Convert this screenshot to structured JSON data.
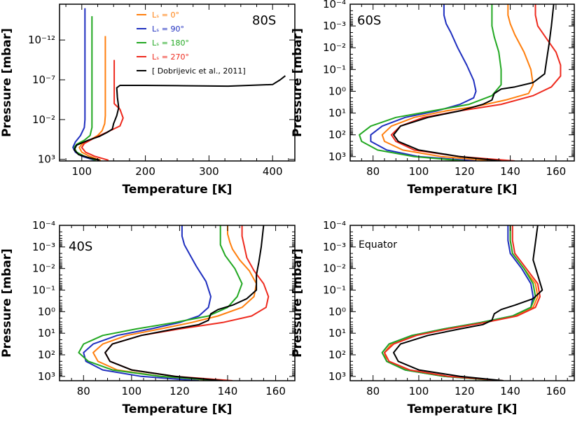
{
  "colors": {
    "ls0": "#ff7f0e",
    "ls90": "#1f2fbf",
    "ls180": "#22a822",
    "ls270": "#ee2a1e",
    "dobrijevic": "#000000"
  },
  "legend": {
    "items": [
      {
        "key": "ls0",
        "label": "Lₛ =    0°"
      },
      {
        "key": "ls90",
        "label": "Lₛ =   90°"
      },
      {
        "key": "ls180",
        "label": "Lₛ = 180°"
      },
      {
        "key": "ls270",
        "label": "Lₛ = 270°"
      },
      {
        "key": "dobrijevic",
        "label": "[ Dobrijevic et al., 2011]"
      }
    ]
  },
  "chart_data": [
    {
      "type": "line",
      "title": "80S",
      "xlabel": "Temperature [K]",
      "ylabel": "Pressure [mbar]",
      "xlim": [
        65,
        435
      ],
      "ylim_log10": [
        3.2,
        -16.5
      ],
      "x_ticks": [
        100,
        200,
        300,
        400
      ],
      "y_ticks": [
        {
          "v": 3,
          "label": "10³"
        },
        {
          "v": -2,
          "label": "10⁻²"
        },
        {
          "v": -7,
          "label": "10⁻⁷"
        },
        {
          "v": -12,
          "label": "10⁻¹²"
        }
      ],
      "series": [
        {
          "name": "Ls=0",
          "color_key": "ls0",
          "T": [
            130,
            112,
            100,
            96,
            100,
            112,
            125,
            132,
            136,
            137,
            137,
            137,
            137,
            137
          ],
          "logP": [
            3.1,
            2.6,
            2.1,
            1.5,
            1.1,
            0.6,
            0,
            -0.6,
            -1.5,
            -2.5,
            -4,
            -7,
            -10,
            -12.5
          ]
        },
        {
          "name": "Ls=90",
          "color_key": "ls90",
          "T": [
            120,
            100,
            90,
            86,
            90,
            98,
            104,
            105,
            105,
            105,
            105,
            105,
            105,
            105
          ],
          "logP": [
            3.1,
            2.6,
            2.1,
            1.5,
            0.8,
            0,
            -1,
            -2,
            -4,
            -6,
            -8,
            -10,
            -13,
            -16
          ]
        },
        {
          "name": "Ls=180",
          "color_key": "ls180",
          "T": [
            122,
            104,
            92,
            88,
            92,
            104,
            113,
            116,
            116,
            116,
            116,
            116,
            116,
            116
          ],
          "logP": [
            3.1,
            2.6,
            2.1,
            1.5,
            1.1,
            0.6,
            0,
            -1,
            -3,
            -5,
            -8,
            -11,
            -13,
            -15
          ]
        },
        {
          "name": "Ls=270",
          "color_key": "ls270",
          "T": [
            142,
            120,
            106,
            100,
            104,
            120,
            142,
            160,
            165,
            160,
            151,
            151,
            151,
            151
          ],
          "logP": [
            3.1,
            2.6,
            2.1,
            1.5,
            1.0,
            0.3,
            -0.5,
            -1.2,
            -2.2,
            -3.3,
            -4,
            -6,
            -8,
            -9.5
          ]
        },
        {
          "name": "Dobrijevic 2011",
          "color_key": "dobrijevic",
          "T": [
            128,
            112,
            95,
            88,
            92,
            110,
            128,
            140,
            148,
            150,
            155,
            158,
            156,
            155,
            160,
            200,
            260,
            330,
            400,
            412,
            420
          ],
          "logP": [
            3.1,
            2.8,
            2.4,
            1.8,
            1.2,
            0.6,
            0.1,
            -0.4,
            -0.8,
            -1.5,
            -2.5,
            -3.5,
            -4.8,
            -6,
            -6.3,
            -6.3,
            -6.25,
            -6.2,
            -6.4,
            -7.0,
            -7.5
          ]
        }
      ]
    },
    {
      "type": "line",
      "title": "60S",
      "xlabel": "Temperature [K]",
      "ylabel": "Pressure [mbar]",
      "xlim": [
        70,
        168
      ],
      "ylim_log10": [
        3.2,
        -4
      ],
      "x_ticks": [
        80,
        100,
        120,
        140,
        160
      ],
      "y_ticks": [
        {
          "v": 3,
          "label": "10³"
        },
        {
          "v": 2,
          "label": "10²"
        },
        {
          "v": 1,
          "label": "10¹"
        },
        {
          "v": 0,
          "label": "10⁰"
        },
        {
          "v": -1,
          "label": "10⁻¹"
        },
        {
          "v": -2,
          "label": "10⁻²"
        },
        {
          "v": -3,
          "label": "10⁻³"
        },
        {
          "v": -4,
          "label": "10⁻⁴"
        }
      ],
      "series": [
        {
          "name": "Ls=0",
          "color_key": "ls0",
          "T": [
            133,
            110,
            93,
            85,
            84,
            88,
            98,
            112,
            125,
            138,
            148,
            150,
            149,
            146,
            142,
            140,
            139,
            139
          ],
          "logP": [
            3.2,
            3.0,
            2.7,
            2.3,
            2.0,
            1.6,
            1.2,
            0.9,
            0.7,
            0.4,
            0.1,
            -0.3,
            -1.0,
            -1.8,
            -2.6,
            -3.1,
            -3.5,
            -4
          ]
        },
        {
          "name": "Ls=90",
          "color_key": "ls90",
          "T": [
            125,
            100,
            86,
            79,
            79,
            84,
            94,
            108,
            118,
            124,
            125,
            124,
            121,
            117,
            114,
            112,
            111,
            111
          ],
          "logP": [
            3.2,
            3.0,
            2.7,
            2.3,
            2.0,
            1.6,
            1.2,
            0.9,
            0.6,
            0.3,
            0.0,
            -0.5,
            -1.2,
            -2.0,
            -2.7,
            -3.1,
            -3.5,
            -4
          ]
        },
        {
          "name": "Ls=180",
          "color_key": "ls180",
          "T": [
            120,
            98,
            82,
            75,
            74,
            79,
            90,
            106,
            122,
            132,
            136,
            136,
            135,
            133,
            132,
            132,
            132
          ],
          "logP": [
            3.2,
            3.0,
            2.7,
            2.3,
            2.0,
            1.6,
            1.2,
            0.9,
            0.6,
            0.2,
            -0.3,
            -1.0,
            -1.8,
            -2.5,
            -3.0,
            -3.5,
            -4
          ]
        },
        {
          "name": "Ls=270",
          "color_key": "ls270",
          "T": [
            142,
            118,
            98,
            90,
            88,
            92,
            102,
            118,
            136,
            150,
            158,
            162,
            162,
            160,
            156,
            152,
            151,
            151
          ],
          "logP": [
            3.2,
            3.0,
            2.7,
            2.3,
            2.0,
            1.6,
            1.2,
            0.9,
            0.6,
            0.2,
            -0.2,
            -0.7,
            -1.2,
            -1.8,
            -2.4,
            -3.0,
            -3.5,
            -4
          ]
        },
        {
          "name": "Dobrijevic 2011",
          "color_key": "dobrijevic",
          "T": [
            136,
            118,
            100,
            91,
            89,
            92,
            104,
            118,
            128,
            132,
            133,
            136,
            142,
            150,
            155,
            156,
            157,
            158,
            159
          ],
          "logP": [
            3.2,
            3.0,
            2.7,
            2.3,
            2.0,
            1.6,
            1.2,
            0.9,
            0.6,
            0.4,
            0.1,
            -0.1,
            -0.2,
            -0.4,
            -0.8,
            -1.5,
            -2.2,
            -3.0,
            -4
          ]
        }
      ]
    },
    {
      "type": "line",
      "title": "40S",
      "xlabel": "Temperature [K]",
      "ylabel": "Pressure [mbar]",
      "xlim": [
        70,
        168
      ],
      "ylim_log10": [
        3.2,
        -4
      ],
      "x_ticks": [
        80,
        100,
        120,
        140,
        160
      ],
      "y_ticks": [
        {
          "v": 3,
          "label": "10³"
        },
        {
          "v": 2,
          "label": "10²"
        },
        {
          "v": 1,
          "label": "10¹"
        },
        {
          "v": 0,
          "label": "10⁰"
        },
        {
          "v": -1,
          "label": "10⁻¹"
        },
        {
          "v": -2,
          "label": "10⁻²"
        },
        {
          "v": -3,
          "label": "10⁻³"
        },
        {
          "v": -4,
          "label": "10⁻⁴"
        }
      ],
      "series": [
        {
          "name": "Ls=0",
          "color_key": "ls0",
          "T": [
            136,
            112,
            94,
            86,
            84,
            88,
            98,
            112,
            125,
            136,
            146,
            151,
            152,
            149,
            145,
            142,
            141,
            140,
            140
          ],
          "logP": [
            3.2,
            3.0,
            2.7,
            2.3,
            1.9,
            1.5,
            1.1,
            0.8,
            0.5,
            0.2,
            -0.2,
            -0.7,
            -1.3,
            -1.9,
            -2.4,
            -2.9,
            -3.2,
            -3.6,
            -4
          ]
        },
        {
          "name": "Ls=90",
          "color_key": "ls90",
          "T": [
            128,
            104,
            88,
            81,
            80,
            84,
            94,
            108,
            120,
            128,
            132,
            133,
            131,
            127,
            124,
            122,
            121,
            121
          ],
          "logP": [
            3.2,
            3.0,
            2.7,
            2.3,
            1.9,
            1.5,
            1.1,
            0.8,
            0.5,
            0.2,
            -0.2,
            -0.7,
            -1.4,
            -2.1,
            -2.7,
            -3.1,
            -3.5,
            -4
          ]
        },
        {
          "name": "Ls=180",
          "color_key": "ls180",
          "T": [
            137,
            112,
            92,
            82,
            78,
            80,
            88,
            102,
            118,
            132,
            140,
            144,
            146,
            143,
            139,
            137,
            137,
            137
          ],
          "logP": [
            3.2,
            3.0,
            2.7,
            2.3,
            1.9,
            1.5,
            1.1,
            0.8,
            0.5,
            0.2,
            -0.2,
            -0.7,
            -1.3,
            -2.0,
            -2.6,
            -3.1,
            -3.5,
            -4
          ]
        },
        {
          "name": "Ls=270",
          "color_key": "ls270",
          "T": [
            142,
            118,
            100,
            91,
            89,
            92,
            104,
            120,
            138,
            150,
            156,
            157,
            155,
            151,
            148,
            147,
            146,
            146
          ],
          "logP": [
            3.2,
            3.0,
            2.7,
            2.3,
            1.9,
            1.5,
            1.1,
            0.8,
            0.5,
            0.2,
            -0.2,
            -0.7,
            -1.3,
            -1.9,
            -2.5,
            -3.0,
            -3.5,
            -4
          ]
        },
        {
          "name": "Dobrijevic 2011",
          "color_key": "dobrijevic",
          "T": [
            138,
            118,
            100,
            91,
            89,
            92,
            104,
            118,
            128,
            132,
            133,
            136,
            142,
            148,
            152,
            152,
            153,
            154,
            155
          ],
          "logP": [
            3.2,
            3.0,
            2.7,
            2.3,
            1.9,
            1.5,
            1.1,
            0.8,
            0.6,
            0.4,
            0.1,
            -0.1,
            -0.3,
            -0.6,
            -1.0,
            -1.7,
            -2.3,
            -3.0,
            -4
          ]
        }
      ]
    },
    {
      "type": "line",
      "title": "Equator",
      "xlabel": "Temperature [K]",
      "ylabel": "Pressure [mbar]",
      "xlim": [
        70,
        168
      ],
      "ylim_log10": [
        3.2,
        -4
      ],
      "x_ticks": [
        80,
        100,
        120,
        140,
        160
      ],
      "y_ticks": [
        {
          "v": 3,
          "label": "10³"
        },
        {
          "v": 2,
          "label": "10²"
        },
        {
          "v": 1,
          "label": "10¹"
        },
        {
          "v": 0,
          "label": "10⁰"
        },
        {
          "v": -1,
          "label": "10⁻¹"
        },
        {
          "v": -2,
          "label": "10⁻²"
        },
        {
          "v": -3,
          "label": "10⁻³"
        },
        {
          "v": -4,
          "label": "10⁻⁴"
        }
      ],
      "series": [
        {
          "name": "Ls=0",
          "color_key": "ls0",
          "T": [
            136,
            112,
            95,
            86,
            85,
            88,
            98,
            112,
            128,
            142,
            150,
            152,
            151,
            146,
            141,
            140,
            140
          ],
          "logP": [
            3.2,
            3.0,
            2.7,
            2.3,
            1.9,
            1.5,
            1.1,
            0.8,
            0.5,
            0.2,
            -0.2,
            -0.7,
            -1.3,
            -2.0,
            -2.7,
            -3.3,
            -4
          ]
        },
        {
          "name": "Ls=90",
          "color_key": "ls90",
          "T": [
            135,
            111,
            94,
            86,
            84,
            87,
            97,
            111,
            127,
            141,
            149,
            150,
            149,
            145,
            140,
            139,
            139
          ],
          "logP": [
            3.2,
            3.0,
            2.7,
            2.3,
            1.9,
            1.5,
            1.1,
            0.8,
            0.5,
            0.2,
            -0.2,
            -0.7,
            -1.3,
            -2.0,
            -2.7,
            -3.3,
            -4
          ]
        },
        {
          "name": "Ls=180",
          "color_key": "ls180",
          "T": [
            135,
            111,
            94,
            86,
            84,
            87,
            97,
            111,
            127,
            141,
            149,
            151,
            150,
            146,
            141,
            140,
            140
          ],
          "logP": [
            3.2,
            3.0,
            2.7,
            2.3,
            1.9,
            1.5,
            1.1,
            0.8,
            0.5,
            0.2,
            -0.2,
            -0.7,
            -1.3,
            -2.0,
            -2.7,
            -3.3,
            -4
          ]
        },
        {
          "name": "Ls=270",
          "color_key": "ls270",
          "T": [
            137,
            113,
            96,
            87,
            85,
            89,
            99,
            113,
            129,
            143,
            151,
            153,
            152,
            147,
            142,
            141,
            141
          ],
          "logP": [
            3.2,
            3.0,
            2.7,
            2.3,
            1.9,
            1.5,
            1.1,
            0.8,
            0.5,
            0.2,
            -0.2,
            -0.7,
            -1.3,
            -2.0,
            -2.7,
            -3.3,
            -4
          ]
        },
        {
          "name": "Dobrijevic 2011",
          "color_key": "dobrijevic",
          "T": [
            137,
            118,
            100,
            91,
            89,
            92,
            104,
            118,
            128,
            132,
            133,
            136,
            142,
            150,
            154,
            152,
            150,
            151,
            152
          ],
          "logP": [
            3.2,
            3.0,
            2.7,
            2.3,
            1.9,
            1.5,
            1.1,
            0.8,
            0.6,
            0.4,
            0.1,
            -0.1,
            -0.3,
            -0.6,
            -1.0,
            -1.7,
            -2.4,
            -3.2,
            -4
          ]
        }
      ]
    }
  ]
}
